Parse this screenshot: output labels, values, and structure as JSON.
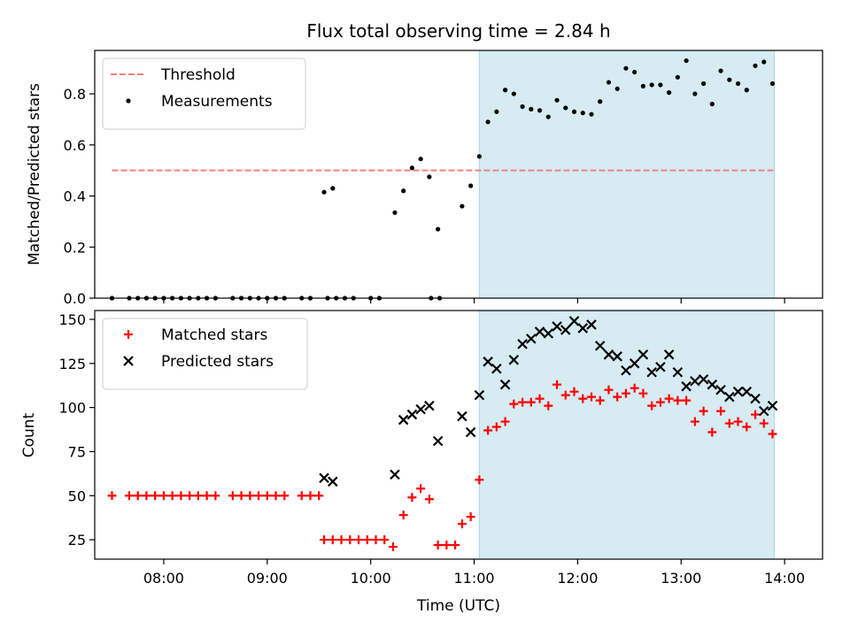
{
  "figure": {
    "title": "Flux total observing time = 2.84 h",
    "xlabel": "Time (UTC)",
    "x_ticks": [
      "08:00",
      "09:00",
      "10:00",
      "11:00",
      "12:00",
      "13:00",
      "14:00"
    ],
    "shaded_color": "#add8e6"
  },
  "chart_data": [
    {
      "type": "scatter",
      "panel": "top",
      "ylabel": "Matched/Predicted stars",
      "xlim": [
        "07:20",
        "14:22"
      ],
      "ylim": [
        0,
        0.97
      ],
      "y_ticks": [
        "0.0",
        "0.2",
        "0.4",
        "0.6",
        "0.8"
      ],
      "grid": false,
      "legend_position": "upper left",
      "shaded_region": [
        "11:03",
        "13:54"
      ],
      "threshold": {
        "name": "Threshold",
        "value": 0.5,
        "x_range": [
          "07:30",
          "13:54"
        ],
        "color": "#f08080",
        "style": "dashed"
      },
      "series": [
        {
          "name": "Measurements",
          "color": "#000000",
          "marker": "dot",
          "points": [
            [
              "07:30",
              0.0
            ],
            [
              "07:40",
              0.0
            ],
            [
              "07:45",
              0.0
            ],
            [
              "07:50",
              0.0
            ],
            [
              "07:55",
              0.0
            ],
            [
              "08:00",
              0.0
            ],
            [
              "08:05",
              0.0
            ],
            [
              "08:10",
              0.0
            ],
            [
              "08:15",
              0.0
            ],
            [
              "08:20",
              0.0
            ],
            [
              "08:25",
              0.0
            ],
            [
              "08:30",
              0.0
            ],
            [
              "08:40",
              0.0
            ],
            [
              "08:45",
              0.0
            ],
            [
              "08:50",
              0.0
            ],
            [
              "08:55",
              0.0
            ],
            [
              "09:00",
              0.0
            ],
            [
              "09:05",
              0.0
            ],
            [
              "09:10",
              0.0
            ],
            [
              "09:20",
              0.0
            ],
            [
              "09:25",
              0.0
            ],
            [
              "09:35",
              0.0
            ],
            [
              "09:40",
              0.0
            ],
            [
              "09:45",
              0.0
            ],
            [
              "09:50",
              0.0
            ],
            [
              "10:00",
              0.0
            ],
            [
              "10:05",
              0.0
            ],
            [
              "10:35",
              0.0
            ],
            [
              "10:40",
              0.0
            ],
            [
              "09:33",
              0.415
            ],
            [
              "09:38",
              0.43
            ],
            [
              "10:14",
              0.335
            ],
            [
              "10:19",
              0.42
            ],
            [
              "10:24",
              0.51
            ],
            [
              "10:29",
              0.545
            ],
            [
              "10:34",
              0.475
            ],
            [
              "10:39",
              0.27
            ],
            [
              "10:53",
              0.36
            ],
            [
              "10:58",
              0.44
            ],
            [
              "11:03",
              0.555
            ],
            [
              "11:08",
              0.69
            ],
            [
              "11:13",
              0.73
            ],
            [
              "11:18",
              0.815
            ],
            [
              "11:23",
              0.8
            ],
            [
              "11:28",
              0.75
            ],
            [
              "11:33",
              0.74
            ],
            [
              "11:38",
              0.735
            ],
            [
              "11:43",
              0.71
            ],
            [
              "11:48",
              0.775
            ],
            [
              "11:53",
              0.745
            ],
            [
              "11:58",
              0.73
            ],
            [
              "12:03",
              0.725
            ],
            [
              "12:08",
              0.72
            ],
            [
              "12:13",
              0.77
            ],
            [
              "12:18",
              0.845
            ],
            [
              "12:23",
              0.82
            ],
            [
              "12:28",
              0.9
            ],
            [
              "12:33",
              0.885
            ],
            [
              "12:38",
              0.83
            ],
            [
              "12:43",
              0.835
            ],
            [
              "12:48",
              0.835
            ],
            [
              "12:53",
              0.805
            ],
            [
              "12:58",
              0.865
            ],
            [
              "13:03",
              0.93
            ],
            [
              "13:08",
              0.8
            ],
            [
              "13:13",
              0.84
            ],
            [
              "13:18",
              0.76
            ],
            [
              "13:23",
              0.89
            ],
            [
              "13:28",
              0.855
            ],
            [
              "13:33",
              0.84
            ],
            [
              "13:38",
              0.815
            ],
            [
              "13:43",
              0.91
            ],
            [
              "13:48",
              0.925
            ],
            [
              "13:53",
              0.84
            ]
          ]
        }
      ]
    },
    {
      "type": "scatter",
      "panel": "bottom",
      "ylabel": "Count",
      "xlabel": "Time (UTC)",
      "xlim": [
        "07:20",
        "14:22"
      ],
      "ylim": [
        14,
        155
      ],
      "y_ticks": [
        "25",
        "50",
        "75",
        "100",
        "125",
        "150"
      ],
      "grid": false,
      "legend_position": "upper left",
      "shaded_region": [
        "11:03",
        "13:54"
      ],
      "series": [
        {
          "name": "Matched stars",
          "color": "#ff0000",
          "marker": "plus",
          "points": [
            [
              "07:30",
              50
            ],
            [
              "07:40",
              50
            ],
            [
              "07:45",
              50
            ],
            [
              "07:50",
              50
            ],
            [
              "07:55",
              50
            ],
            [
              "08:00",
              50
            ],
            [
              "08:05",
              50
            ],
            [
              "08:10",
              50
            ],
            [
              "08:15",
              50
            ],
            [
              "08:20",
              50
            ],
            [
              "08:25",
              50
            ],
            [
              "08:30",
              50
            ],
            [
              "08:40",
              50
            ],
            [
              "08:45",
              50
            ],
            [
              "08:50",
              50
            ],
            [
              "08:55",
              50
            ],
            [
              "09:00",
              50
            ],
            [
              "09:05",
              50
            ],
            [
              "09:10",
              50
            ],
            [
              "09:20",
              50
            ],
            [
              "09:25",
              50
            ],
            [
              "09:30",
              50
            ],
            [
              "09:33",
              25
            ],
            [
              "09:38",
              25
            ],
            [
              "09:43",
              25
            ],
            [
              "09:48",
              25
            ],
            [
              "09:53",
              25
            ],
            [
              "09:58",
              25
            ],
            [
              "10:03",
              25
            ],
            [
              "10:08",
              25
            ],
            [
              "10:13",
              21
            ],
            [
              "10:19",
              39
            ],
            [
              "10:24",
              49
            ],
            [
              "10:29",
              54
            ],
            [
              "10:34",
              48
            ],
            [
              "10:39",
              22
            ],
            [
              "10:44",
              22
            ],
            [
              "10:49",
              22
            ],
            [
              "10:53",
              34
            ],
            [
              "10:58",
              38
            ],
            [
              "11:03",
              59
            ],
            [
              "11:08",
              87
            ],
            [
              "11:13",
              89
            ],
            [
              "11:18",
              92
            ],
            [
              "11:23",
              102
            ],
            [
              "11:28",
              103
            ],
            [
              "11:33",
              103
            ],
            [
              "11:38",
              105
            ],
            [
              "11:43",
              101
            ],
            [
              "11:48",
              113
            ],
            [
              "11:53",
              107
            ],
            [
              "11:58",
              109
            ],
            [
              "12:03",
              105
            ],
            [
              "12:08",
              106
            ],
            [
              "12:13",
              104
            ],
            [
              "12:18",
              110
            ],
            [
              "12:23",
              106
            ],
            [
              "12:28",
              108
            ],
            [
              "12:33",
              111
            ],
            [
              "12:38",
              108
            ],
            [
              "12:43",
              101
            ],
            [
              "12:48",
              103
            ],
            [
              "12:53",
              105
            ],
            [
              "12:58",
              104
            ],
            [
              "13:03",
              104
            ],
            [
              "13:08",
              92
            ],
            [
              "13:13",
              98
            ],
            [
              "13:18",
              86
            ],
            [
              "13:23",
              98
            ],
            [
              "13:28",
              91
            ],
            [
              "13:33",
              92
            ],
            [
              "13:38",
              89
            ],
            [
              "13:43",
              96
            ],
            [
              "13:48",
              91
            ],
            [
              "13:53",
              85
            ]
          ]
        },
        {
          "name": "Predicted stars",
          "color": "#000000",
          "marker": "x",
          "points": [
            [
              "09:33",
              60
            ],
            [
              "09:38",
              58
            ],
            [
              "10:14",
              62
            ],
            [
              "10:19",
              93
            ],
            [
              "10:24",
              96
            ],
            [
              "10:29",
              99
            ],
            [
              "10:34",
              101
            ],
            [
              "10:39",
              81
            ],
            [
              "10:53",
              95
            ],
            [
              "10:58",
              86
            ],
            [
              "11:03",
              107
            ],
            [
              "11:08",
              126
            ],
            [
              "11:13",
              122
            ],
            [
              "11:18",
              113
            ],
            [
              "11:23",
              127
            ],
            [
              "11:28",
              136
            ],
            [
              "11:33",
              139
            ],
            [
              "11:38",
              143
            ],
            [
              "11:43",
              142
            ],
            [
              "11:48",
              146
            ],
            [
              "11:53",
              144
            ],
            [
              "11:58",
              149
            ],
            [
              "12:03",
              145
            ],
            [
              "12:08",
              147
            ],
            [
              "12:13",
              135
            ],
            [
              "12:18",
              130
            ],
            [
              "12:23",
              129
            ],
            [
              "12:28",
              121
            ],
            [
              "12:33",
              125
            ],
            [
              "12:38",
              130
            ],
            [
              "12:43",
              120
            ],
            [
              "12:48",
              123
            ],
            [
              "12:53",
              130
            ],
            [
              "12:58",
              120
            ],
            [
              "13:03",
              112
            ],
            [
              "13:08",
              115
            ],
            [
              "13:13",
              116
            ],
            [
              "13:18",
              113
            ],
            [
              "13:23",
              110
            ],
            [
              "13:28",
              106
            ],
            [
              "13:33",
              109
            ],
            [
              "13:38",
              109
            ],
            [
              "13:43",
              105
            ],
            [
              "13:48",
              98
            ],
            [
              "13:53",
              101
            ]
          ]
        }
      ]
    }
  ]
}
